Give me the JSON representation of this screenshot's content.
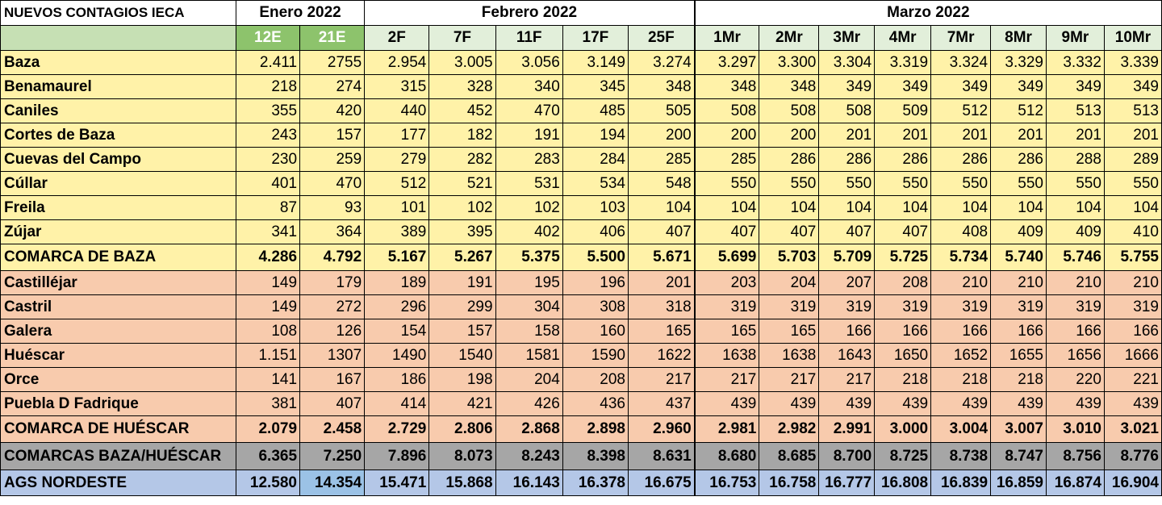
{
  "table": {
    "title": "NUEVOS CONTAGIOS IECA",
    "months": [
      "Enero 2022",
      "Febrero 2022",
      "Marzo 2022"
    ],
    "dates": [
      "12E",
      "21E",
      "2F",
      "7F",
      "11F",
      "17F",
      "25F",
      "1Mr",
      "2Mr",
      "3Mr",
      "4Mr",
      "7Mr",
      "8Mr",
      "9Mr",
      "10Mr"
    ],
    "rows": [
      {
        "name": "Baza",
        "group": "baza",
        "values": [
          "2.411",
          "2755",
          "2.954",
          "3.005",
          "3.056",
          "3.149",
          "3.274",
          "3.297",
          "3.300",
          "3.304",
          "3.319",
          "3.324",
          "3.329",
          "3.332",
          "3.339"
        ]
      },
      {
        "name": "Benamaurel",
        "group": "baza",
        "values": [
          "218",
          "274",
          "315",
          "328",
          "340",
          "345",
          "348",
          "348",
          "348",
          "349",
          "349",
          "349",
          "349",
          "349",
          "349"
        ]
      },
      {
        "name": "Caniles",
        "group": "baza",
        "values": [
          "355",
          "420",
          "440",
          "452",
          "470",
          "485",
          "505",
          "508",
          "508",
          "508",
          "509",
          "512",
          "512",
          "513",
          "513"
        ]
      },
      {
        "name": "Cortes de Baza",
        "group": "baza",
        "values": [
          "243",
          "157",
          "177",
          "182",
          "191",
          "194",
          "200",
          "200",
          "200",
          "201",
          "201",
          "201",
          "201",
          "201",
          "201"
        ]
      },
      {
        "name": "Cuevas del Campo",
        "group": "baza",
        "values": [
          "230",
          "259",
          "279",
          "282",
          "283",
          "284",
          "285",
          "285",
          "286",
          "286",
          "286",
          "286",
          "286",
          "288",
          "289"
        ]
      },
      {
        "name": "Cúllar",
        "group": "baza",
        "values": [
          "401",
          "470",
          "512",
          "521",
          "531",
          "534",
          "548",
          "550",
          "550",
          "550",
          "550",
          "550",
          "550",
          "550",
          "550"
        ]
      },
      {
        "name": "Freila",
        "group": "baza",
        "values": [
          "87",
          "93",
          "101",
          "102",
          "102",
          "103",
          "104",
          "104",
          "104",
          "104",
          "104",
          "104",
          "104",
          "104",
          "104"
        ]
      },
      {
        "name": "Zújar",
        "group": "baza",
        "values": [
          "341",
          "364",
          "389",
          "395",
          "402",
          "406",
          "407",
          "407",
          "407",
          "407",
          "407",
          "408",
          "409",
          "409",
          "410"
        ]
      },
      {
        "name": "COMARCA DE BAZA",
        "group": "baza-total",
        "values": [
          "4.286",
          "4.792",
          "5.167",
          "5.267",
          "5.375",
          "5.500",
          "5.671",
          "5.699",
          "5.703",
          "5.709",
          "5.725",
          "5.734",
          "5.740",
          "5.746",
          "5.755"
        ]
      },
      {
        "name": "Castilléjar",
        "group": "huescar",
        "values": [
          "149",
          "179",
          "189",
          "191",
          "195",
          "196",
          "201",
          "203",
          "204",
          "207",
          "208",
          "210",
          "210",
          "210",
          "210"
        ]
      },
      {
        "name": "Castril",
        "group": "huescar",
        "values": [
          "149",
          "272",
          "296",
          "299",
          "304",
          "308",
          "318",
          "319",
          "319",
          "319",
          "319",
          "319",
          "319",
          "319",
          "319"
        ]
      },
      {
        "name": "Galera",
        "group": "huescar",
        "values": [
          "108",
          "126",
          "154",
          "157",
          "158",
          "160",
          "165",
          "165",
          "165",
          "166",
          "166",
          "166",
          "166",
          "166",
          "166"
        ]
      },
      {
        "name": "Huéscar",
        "group": "huescar",
        "values": [
          "1.151",
          "1307",
          "1490",
          "1540",
          "1581",
          "1590",
          "1622",
          "1638",
          "1638",
          "1643",
          "1650",
          "1652",
          "1655",
          "1656",
          "1666"
        ]
      },
      {
        "name": "Orce",
        "group": "huescar",
        "values": [
          "141",
          "167",
          "186",
          "198",
          "204",
          "208",
          "217",
          "217",
          "217",
          "217",
          "218",
          "218",
          "218",
          "220",
          "221"
        ]
      },
      {
        "name": "Puebla D Fadrique",
        "group": "huescar",
        "values": [
          "381",
          "407",
          "414",
          "421",
          "426",
          "436",
          "437",
          "439",
          "439",
          "439",
          "439",
          "439",
          "439",
          "439",
          "439"
        ]
      },
      {
        "name": "COMARCA DE HUÉSCAR",
        "group": "huescar-total",
        "values": [
          "2.079",
          "2.458",
          "2.729",
          "2.806",
          "2.868",
          "2.898",
          "2.960",
          "2.981",
          "2.982",
          "2.991",
          "3.000",
          "3.004",
          "3.007",
          "3.010",
          "3.021"
        ]
      },
      {
        "name": "COMARCAS BAZA/HUÉSCAR",
        "group": "both",
        "values": [
          "6.365",
          "7.250",
          "7.896",
          "8.073",
          "8.243",
          "8.398",
          "8.631",
          "8.680",
          "8.685",
          "8.700",
          "8.725",
          "8.738",
          "8.747",
          "8.756",
          "8.776"
        ]
      },
      {
        "name": "AGS NORDESTE",
        "group": "ags",
        "values": [
          "12.580",
          "14.354",
          "15.471",
          "15.868",
          "16.143",
          "16.378",
          "16.675",
          "16.753",
          "16.758",
          "16.777",
          "16.808",
          "16.839",
          "16.859",
          "16.874",
          "16.904"
        ]
      }
    ]
  }
}
